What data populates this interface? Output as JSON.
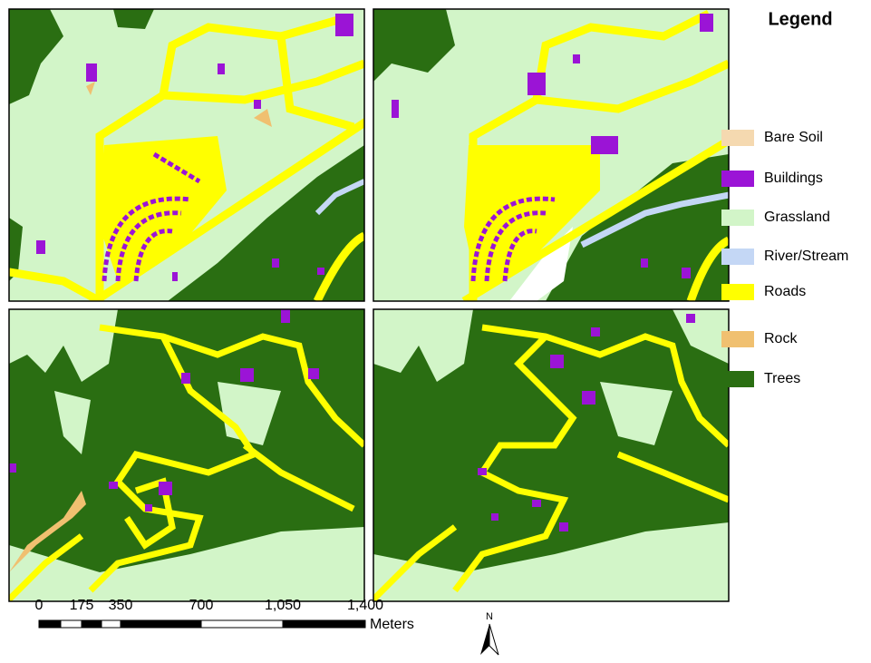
{
  "legend": {
    "title": "Legend",
    "items": [
      {
        "label": "Bare Soil",
        "color": "#f5d9b0"
      },
      {
        "label": "Buildings",
        "color": "#9b14d6"
      },
      {
        "label": "Grassland",
        "color": "#d2f5c8"
      },
      {
        "label": "River/Stream",
        "color": "#c4d7f5"
      },
      {
        "label": "Roads",
        "color": "#ffff00"
      },
      {
        "label": "Rock",
        "color": "#f0c070"
      },
      {
        "label": "Trees",
        "color": "#2a6e12"
      }
    ]
  },
  "scale_bar": {
    "labels": [
      "0",
      "175",
      "350",
      "700",
      "1,050",
      "1,400"
    ],
    "unit": "Meters"
  },
  "north_arrow": "N"
}
